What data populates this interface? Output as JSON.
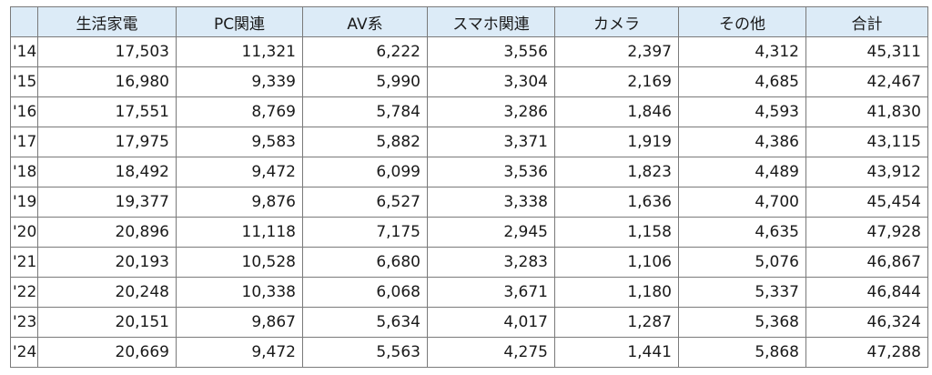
{
  "table": {
    "headers": [
      "",
      "生活家電",
      "PC関連",
      "AV系",
      "スマホ関連",
      "カメラ",
      "その他",
      "合計"
    ],
    "rows": [
      [
        "'14",
        "17,503",
        "11,321",
        "6,222",
        "3,556",
        "2,397",
        "4,312",
        "45,311"
      ],
      [
        "'15",
        "16,980",
        "9,339",
        "5,990",
        "3,304",
        "2,169",
        "4,685",
        "42,467"
      ],
      [
        "'16",
        "17,551",
        "8,769",
        "5,784",
        "3,286",
        "1,846",
        "4,593",
        "41,830"
      ],
      [
        "'17",
        "17,975",
        "9,583",
        "5,882",
        "3,371",
        "1,919",
        "4,386",
        "43,115"
      ],
      [
        "'18",
        "18,492",
        "9,472",
        "6,099",
        "3,536",
        "1,823",
        "4,489",
        "43,912"
      ],
      [
        "'19",
        "19,377",
        "9,876",
        "6,527",
        "3,338",
        "1,636",
        "4,700",
        "45,454"
      ],
      [
        "'20",
        "20,896",
        "11,118",
        "7,175",
        "2,945",
        "1,158",
        "4,635",
        "47,928"
      ],
      [
        "'21",
        "20,193",
        "10,528",
        "6,680",
        "3,283",
        "1,106",
        "5,076",
        "46,867"
      ],
      [
        "'22",
        "20,248",
        "10,338",
        "6,068",
        "3,671",
        "1,180",
        "5,337",
        "46,844"
      ],
      [
        "'23",
        "20,151",
        "9,867",
        "5,634",
        "4,017",
        "1,287",
        "5,368",
        "46,324"
      ],
      [
        "'24",
        "20,669",
        "9,472",
        "5,563",
        "4,275",
        "1,441",
        "5,868",
        "47,288"
      ]
    ]
  },
  "colors": {
    "header_background": "#dcebf7",
    "border": "#7a7a7a"
  }
}
